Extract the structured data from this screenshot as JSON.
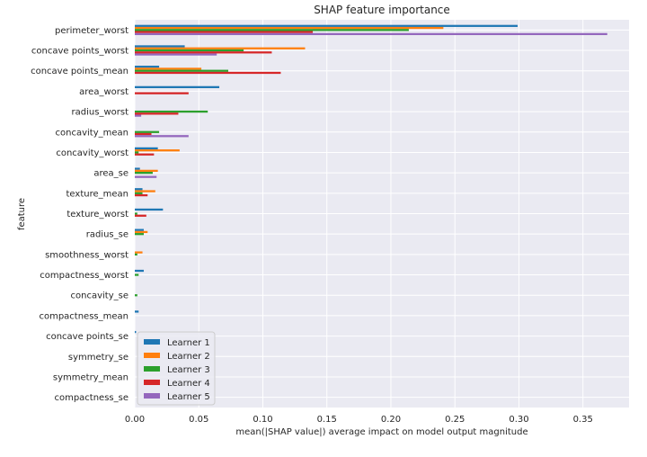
{
  "chart_data": {
    "type": "bar",
    "orientation": "horizontal",
    "title": "SHAP feature importance",
    "xlabel": "mean(|SHAP value|) average impact on model output magnitude",
    "ylabel": "feature",
    "xlim": [
      0,
      0.386
    ],
    "xticks": [
      0.0,
      0.05,
      0.1,
      0.15,
      0.2,
      0.25,
      0.3,
      0.35
    ],
    "xtick_labels": [
      "0.00",
      "0.05",
      "0.10",
      "0.15",
      "0.20",
      "0.25",
      "0.30",
      "0.35"
    ],
    "grid": true,
    "legend_position": "lower-left",
    "categories": [
      "perimeter_worst",
      "concave points_worst",
      "concave points_mean",
      "area_worst",
      "radius_worst",
      "concavity_mean",
      "concavity_worst",
      "area_se",
      "texture_mean",
      "texture_worst",
      "radius_se",
      "smoothness_worst",
      "compactness_worst",
      "concavity_se",
      "compactness_mean",
      "concave points_se",
      "symmetry_se",
      "symmetry_mean",
      "compactness_se"
    ],
    "series": [
      {
        "name": "Learner 1",
        "color": "#1f77b4",
        "values": [
          0.299,
          0.039,
          0.019,
          0.066,
          0.0,
          0.0,
          0.018,
          0.004,
          0.006,
          0.022,
          0.007,
          0.0,
          0.007,
          0.0,
          0.003,
          0.001,
          0.0,
          0.0,
          0.0
        ]
      },
      {
        "name": "Learner 2",
        "color": "#ff7f0e",
        "values": [
          0.241,
          0.133,
          0.052,
          0.0,
          0.0,
          0.0,
          0.035,
          0.018,
          0.016,
          0.0,
          0.01,
          0.006,
          0.0,
          0.0,
          0.0,
          0.0,
          0.0,
          0.0,
          0.0
        ]
      },
      {
        "name": "Learner 3",
        "color": "#2ca02c",
        "values": [
          0.214,
          0.085,
          0.073,
          0.0,
          0.057,
          0.019,
          0.003,
          0.014,
          0.006,
          0.002,
          0.007,
          0.002,
          0.003,
          0.002,
          0.0,
          0.0,
          0.0,
          0.0,
          0.0
        ]
      },
      {
        "name": "Learner 4",
        "color": "#d62728",
        "values": [
          0.139,
          0.107,
          0.114,
          0.042,
          0.034,
          0.013,
          0.015,
          0.0,
          0.01,
          0.009,
          0.0,
          0.0,
          0.0,
          0.0,
          0.0,
          0.0,
          0.0,
          0.0,
          0.0
        ]
      },
      {
        "name": "Learner 5",
        "color": "#9467bd",
        "values": [
          0.369,
          0.064,
          0.0,
          0.0,
          0.005,
          0.042,
          0.0,
          0.017,
          0.0,
          0.0,
          0.0,
          0.0,
          0.0,
          0.0,
          0.0,
          0.0,
          0.0,
          0.0,
          0.0
        ]
      }
    ]
  }
}
